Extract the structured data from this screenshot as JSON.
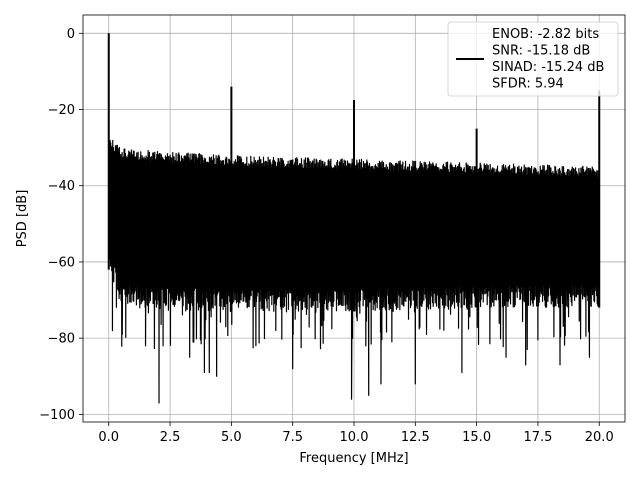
{
  "chart_data": {
    "type": "line",
    "title": "",
    "xlabel": "Frequency [MHz]",
    "ylabel": "PSD [dB]",
    "xlim": [
      -1.05,
      21.05
    ],
    "ylim": [
      -102,
      4.8
    ],
    "xticks": [
      0.0,
      2.5,
      5.0,
      7.5,
      10.0,
      12.5,
      15.0,
      17.5,
      20.0
    ],
    "xtick_labels": [
      "0.0",
      "2.5",
      "5.0",
      "7.5",
      "10.0",
      "12.5",
      "15.0",
      "17.5",
      "20.0"
    ],
    "yticks": [
      0,
      -20,
      -40,
      -60,
      -80,
      -100
    ],
    "ytick_labels": [
      "0",
      "−20",
      "−40",
      "−60",
      "−80",
      "−100"
    ],
    "grid": true,
    "legend_position": "upper right",
    "series": [
      {
        "color": "#000000",
        "noise_band": {
          "x_range": [
            0.0,
            20.0
          ],
          "upper_envelope": [
            [
              0.0,
              -27
            ],
            [
              0.5,
              -30
            ],
            [
              2.0,
              -31
            ],
            [
              5.0,
              -32
            ],
            [
              10.0,
              -33
            ],
            [
              15.0,
              -34
            ],
            [
              20.0,
              -35
            ]
          ],
          "lower_envelope": [
            [
              0.0,
              -62
            ],
            [
              0.5,
              -72
            ],
            [
              5.0,
              -73
            ],
            [
              10.0,
              -73
            ],
            [
              15.0,
              -72
            ],
            [
              20.0,
              -72
            ]
          ],
          "typical_deep_minimum": -83,
          "deep_dips": [
            [
              0.15,
              -78
            ],
            [
              0.55,
              -79
            ],
            [
              1.5,
              -82
            ],
            [
              2.05,
              -97
            ],
            [
              3.3,
              -85
            ],
            [
              3.9,
              -89
            ],
            [
              4.1,
              -89
            ],
            [
              4.4,
              -90
            ],
            [
              6.0,
              -82
            ],
            [
              7.5,
              -88
            ],
            [
              9.9,
              -96
            ],
            [
              10.6,
              -95
            ],
            [
              11.1,
              -92
            ],
            [
              12.5,
              -92
            ],
            [
              14.4,
              -89
            ],
            [
              16.2,
              -85
            ],
            [
              17.0,
              -87
            ],
            [
              18.4,
              -87
            ],
            [
              19.6,
              -85
            ]
          ]
        },
        "spikes": [
          {
            "x": 0.0,
            "y": 0
          },
          {
            "x": 5.0,
            "y": -14
          },
          {
            "x": 10.0,
            "y": -17.5
          },
          {
            "x": 15.0,
            "y": -25
          },
          {
            "x": 20.0,
            "y": -15
          }
        ]
      }
    ],
    "legend": {
      "entries": [
        "ENOB: -2.82 bits",
        "SNR: -15.18 dB",
        "SINAD: -15.24 dB",
        "SFDR: 5.94"
      ]
    }
  }
}
